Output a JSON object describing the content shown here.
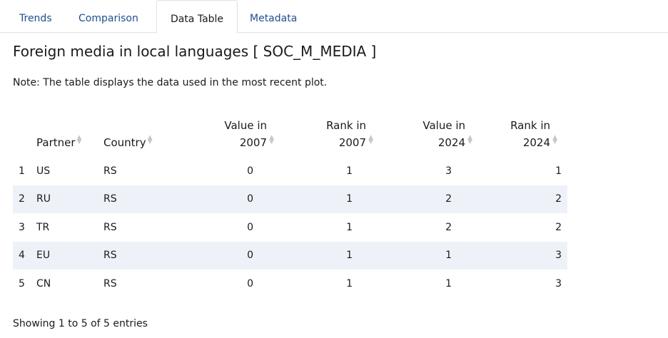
{
  "tabs": [
    {
      "label": "Trends"
    },
    {
      "label": "Comparison"
    },
    {
      "label": "Data Table",
      "active": true
    },
    {
      "label": "Metadata"
    }
  ],
  "title": "Foreign media in local languages [ SOC_M_MEDIA ]",
  "note": "Note: The table displays the data used in the most recent plot.",
  "table": {
    "headers": {
      "partner": "Partner",
      "country": "Country",
      "value_2007_line1": "Value in",
      "value_2007_line2": "2007",
      "rank_2007_line1": "Rank in",
      "rank_2007_line2": "2007",
      "value_2024_line1": "Value in",
      "value_2024_line2": "2024",
      "rank_2024_line1": "Rank in",
      "rank_2024_line2": "2024"
    },
    "rows": [
      {
        "index": "1",
        "partner": "US",
        "country": "RS",
        "value_2007": "0",
        "rank_2007": "1",
        "value_2024": "3",
        "rank_2024": "1"
      },
      {
        "index": "2",
        "partner": "RU",
        "country": "RS",
        "value_2007": "0",
        "rank_2007": "1",
        "value_2024": "2",
        "rank_2024": "2"
      },
      {
        "index": "3",
        "partner": "TR",
        "country": "RS",
        "value_2007": "0",
        "rank_2007": "1",
        "value_2024": "2",
        "rank_2024": "2"
      },
      {
        "index": "4",
        "partner": "EU",
        "country": "RS",
        "value_2007": "0",
        "rank_2007": "1",
        "value_2024": "1",
        "rank_2024": "3"
      },
      {
        "index": "5",
        "partner": "CN",
        "country": "RS",
        "value_2007": "0",
        "rank_2007": "1",
        "value_2024": "1",
        "rank_2024": "3"
      }
    ]
  },
  "info": "Showing 1 to 5 of 5 entries",
  "colors": {
    "tab_text": "#1f4e8c",
    "row_stripe": "#eef2f8",
    "border": "#dee2e6"
  }
}
